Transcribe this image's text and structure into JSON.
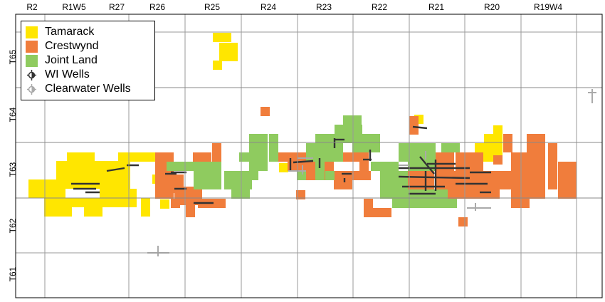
{
  "ranges": [
    "R2",
    "R1W5",
    "R27",
    "R26",
    "R25",
    "R24",
    "R23",
    "R22",
    "R21",
    "R20",
    "R19W4"
  ],
  "townships": [
    "T65",
    "T64",
    "T63",
    "T62",
    "T61"
  ],
  "legend": {
    "items": [
      {
        "label": "Tamarack",
        "color": "#FFE600",
        "kind": "swatch"
      },
      {
        "label": "Crestwynd",
        "color": "#F07D3C",
        "kind": "swatch"
      },
      {
        "label": "Joint Land",
        "color": "#8FCB5F",
        "kind": "swatch"
      },
      {
        "label": "WI Wells",
        "color": "#333333",
        "kind": "well-icon"
      },
      {
        "label": "Clearwater Wells",
        "color": "#AAAAAA",
        "kind": "well-icon"
      }
    ]
  },
  "colors": {
    "tamarack": "#FFE600",
    "crestwynd": "#F07D3C",
    "joint": "#8FCB5F",
    "wi_wells": "#333333",
    "clearwater_wells": "#AAAAAA",
    "grid": "#9a9a9a"
  }
}
